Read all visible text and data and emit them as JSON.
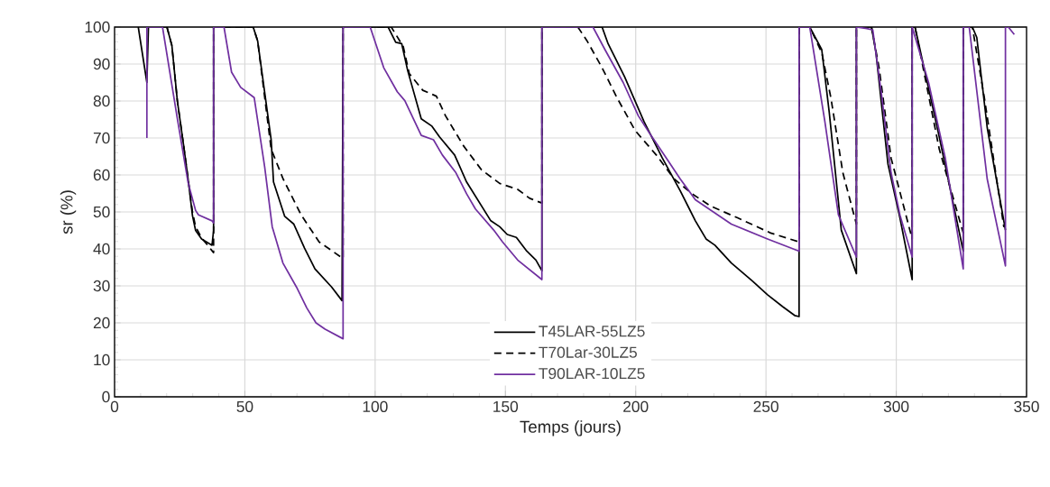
{
  "chart_data": {
    "type": "line",
    "xlabel": "Temps (jours)",
    "ylabel": "sr (%)",
    "xlim": [
      0,
      350
    ],
    "ylim": [
      0,
      100
    ],
    "xticks": [
      0,
      50,
      100,
      150,
      200,
      250,
      300,
      350
    ],
    "yticks": [
      0,
      10,
      20,
      30,
      40,
      50,
      60,
      70,
      80,
      90,
      100
    ],
    "grid": true,
    "legend": "bottom",
    "marker": "none",
    "series": [
      {
        "name": "T45LAR-55LZ5",
        "color": "#000000",
        "line_style": "solid",
        "x": [
          9.1,
          12.4,
          13,
          20.1,
          22,
          24.1,
          26.5,
          28.2,
          29.9,
          31.1,
          33.4,
          37.4,
          38,
          38,
          53.2,
          54.9,
          60.1,
          61,
          65.3,
          68.8,
          72.9,
          76.9,
          83.3,
          87.3,
          87.7,
          105,
          107.9,
          110.2,
          112.5,
          117.7,
          121.8,
          124.7,
          130.5,
          135.1,
          144.4,
          147.8,
          150.7,
          154.2,
          158.2,
          161.7,
          164,
          164,
          187.1,
          189.4,
          195.7,
          203.2,
          210.2,
          217.1,
          222.9,
          227,
          230.4,
          236.7,
          244.8,
          250.6,
          256.4,
          261,
          262.7,
          262.7,
          266.8,
          271.4,
          274.3,
          278.9,
          284.7,
          284.7,
          290.5,
          292.2,
          296.8,
          301.4,
          306.1,
          306.1,
          307.2,
          316.5,
          325.7,
          325.7,
          329.2,
          330.9,
          334.9,
          341.9
        ],
        "values": [
          100,
          85,
          100,
          100,
          95,
          80,
          68,
          59,
          49,
          45,
          42.7,
          41,
          45,
          100,
          100,
          96.3,
          69.5,
          58.1,
          48.8,
          46.7,
          40.2,
          34.6,
          29.7,
          26,
          100,
          100,
          95.9,
          95.5,
          88.2,
          75.2,
          73.2,
          70.3,
          65.4,
          58.1,
          47.6,
          46,
          43.9,
          43.1,
          39.4,
          37,
          34.1,
          100,
          100,
          95.5,
          86.6,
          74.4,
          64.6,
          55.7,
          47.6,
          42.7,
          41,
          36.2,
          31.3,
          27.6,
          24.4,
          22,
          21.7,
          100,
          100,
          93.9,
          76.8,
          45.1,
          33.3,
          100,
          100,
          93.1,
          63,
          48.4,
          31.7,
          100,
          100,
          70.3,
          39.4,
          100,
          100,
          97.2,
          72.8,
          45.1
        ]
      },
      {
        "name": "T70Lar-30LZ5",
        "color": "#000000",
        "line_style": "dashed",
        "x": [
          20.1,
          22,
          24.1,
          26.5,
          28.2,
          29.9,
          31.1,
          33.4,
          38,
          38,
          53.2,
          54.9,
          60.1,
          64.7,
          71.6,
          78.5,
          87.7,
          87.7,
          106.2,
          110.8,
          113.1,
          118.3,
          123.5,
          127,
          133.9,
          140.8,
          147.8,
          154.7,
          159.3,
          164,
          164,
          177.8,
          181.3,
          187.1,
          192.8,
          199.8,
          207.9,
          214.8,
          221.7,
          228.7,
          239.1,
          251.8,
          262.7,
          262.7,
          266.8,
          271.4,
          274.9,
          279.5,
          284.7,
          284.7,
          290.5,
          293.4,
          298,
          306.1,
          306.1,
          307.2,
          316.5,
          325.7,
          325.7,
          329.2,
          333.8,
          341.3
        ],
        "values": [
          100,
          95,
          80,
          68,
          59,
          50,
          46,
          43,
          39,
          100,
          100,
          96.3,
          67,
          58.9,
          49.2,
          41.9,
          37.4,
          100,
          100,
          94.7,
          87.4,
          82.9,
          81.3,
          76,
          67.9,
          61.4,
          57.7,
          56.1,
          53.7,
          52.4,
          100,
          100,
          96.3,
          89,
          80.9,
          72,
          65.4,
          58.9,
          54.9,
          51.6,
          48.4,
          44.3,
          41.9,
          100,
          100,
          93.1,
          80.9,
          60.6,
          46.7,
          100,
          100,
          89,
          64.6,
          42.7,
          100,
          100,
          67,
          44.3,
          100,
          100,
          80.9,
          45.9
        ]
      },
      {
        "name": "T90LAR-10LZ5",
        "color": "#7030a0",
        "line_style": "solid",
        "x": [
          12.4,
          12.4,
          18.4,
          24.1,
          28.2,
          31.1,
          32.2,
          37.4,
          38,
          38,
          42,
          44.9,
          48.4,
          53.6,
          57.6,
          60.5,
          64.6,
          69.8,
          73.8,
          77.3,
          80.8,
          87.7,
          87.7,
          98.1,
          103.3,
          108.5,
          111.4,
          117.7,
          122.4,
          125.8,
          131,
          135.1,
          138.5,
          145.5,
          148.9,
          154.7,
          164,
          164,
          183.6,
          188.2,
          195.2,
          201,
          205.5,
          212.5,
          217.1,
          222.9,
          229.8,
          236.7,
          250.6,
          262.7,
          262.7,
          266.8,
          272.6,
          277.8,
          284.7,
          284.7,
          288.7,
          291,
          294.5,
          298,
          301.4,
          306.1,
          306.1,
          312.4,
          318.8,
          325.7,
          325.7,
          328,
          334.9,
          341.9,
          341.9,
          343,
          345.3
        ],
        "values": [
          70,
          100,
          100,
          75.2,
          58,
          50.4,
          49.2,
          47.6,
          47,
          100,
          100,
          87.8,
          83.7,
          80.9,
          62.2,
          46,
          36.2,
          29.7,
          24,
          20,
          18.3,
          15.7,
          100,
          100,
          89,
          82.5,
          80.1,
          70.7,
          69.5,
          65.4,
          60.6,
          54.9,
          50.8,
          45.1,
          41.9,
          37,
          31.7,
          100,
          100,
          93.9,
          85,
          76,
          71.1,
          63.8,
          58.9,
          53.3,
          50,
          46.7,
          42.7,
          39.4,
          100,
          100,
          74.4,
          49.2,
          37.8,
          100,
          99.6,
          99.2,
          80.9,
          60.6,
          49.2,
          37.8,
          100,
          85,
          64.6,
          34.6,
          100,
          100,
          58.9,
          35.4,
          100,
          100,
          98
        ]
      }
    ]
  }
}
